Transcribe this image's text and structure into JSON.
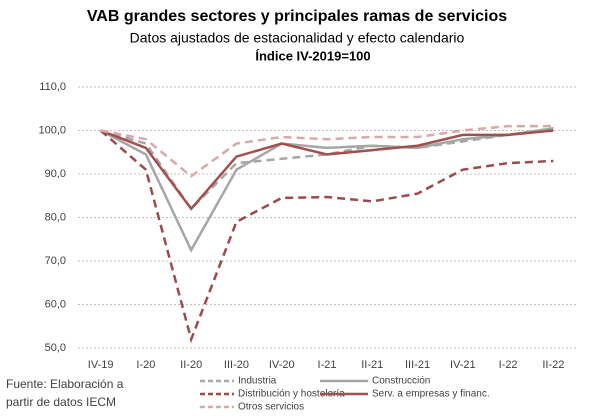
{
  "chart_data": {
    "type": "line",
    "title": "VAB grandes sectores y principales ramas de servicios",
    "subtitle": "Datos ajustados de estacionalidad y efecto calendario",
    "subtitle2": "Índice IV-2019=100",
    "source_lines": [
      "Fuente: Elaboración a",
      "partir de datos IECM"
    ],
    "categories": [
      "IV-19",
      "I-20",
      "II-20",
      "III-20",
      "IV-20",
      "I-21",
      "II-21",
      "III-21",
      "IV-21",
      "I-22",
      "II-22"
    ],
    "ylim": [
      50,
      110
    ],
    "yticks": [
      {
        "value": 50,
        "label": "50,0"
      },
      {
        "value": 60,
        "label": "60,0"
      },
      {
        "value": 70,
        "label": "70,0"
      },
      {
        "value": 80,
        "label": "80,0"
      },
      {
        "value": 90,
        "label": "90,0"
      },
      {
        "value": 100,
        "label": "100,0"
      },
      {
        "value": 110,
        "label": "110,0"
      }
    ],
    "grid": true,
    "series": [
      {
        "name": "Industria",
        "color": "#a6a6a6",
        "dashed": true,
        "values": [
          100,
          97,
          82,
          92.5,
          93.5,
          94.5,
          96.5,
          96,
          97.5,
          99,
          100.5
        ]
      },
      {
        "name": "Construcción",
        "color": "#a6a6a6",
        "dashed": false,
        "values": [
          100,
          94.5,
          72.5,
          91,
          97,
          96,
          96.5,
          96,
          98,
          99,
          100.5
        ]
      },
      {
        "name": "Distribución y hostelería",
        "color": "#9c4a4a",
        "dashed": true,
        "values": [
          100,
          91,
          52,
          79,
          84.5,
          84.7,
          83.7,
          85.5,
          91,
          92.5,
          93
        ]
      },
      {
        "name": "Serv. a empresas y financ.",
        "color": "#a34f50",
        "dashed": false,
        "values": [
          100,
          96,
          82,
          94,
          97,
          94.5,
          95.5,
          96.5,
          99,
          99,
          100
        ]
      },
      {
        "name": "Otros servicios",
        "color": "#d9a8a8",
        "dashed": true,
        "values": [
          100,
          98,
          89.5,
          97,
          98.5,
          98,
          98.5,
          98.5,
          100,
          101,
          101
        ]
      }
    ]
  }
}
